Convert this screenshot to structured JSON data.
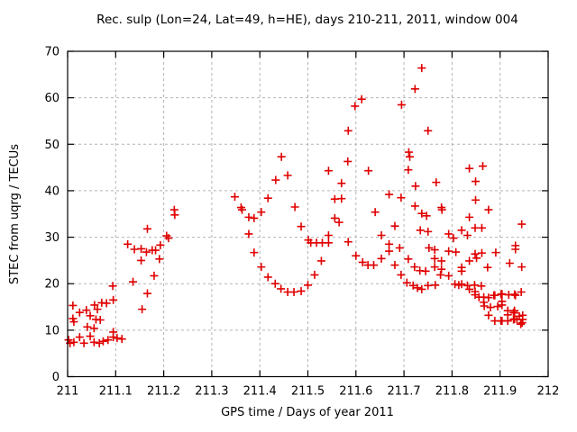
{
  "chart": {
    "title": "Rec. sulp (Lon=24, Lat=49, h=HE), days 210-211, 2011, window 004",
    "xlabel": "GPS time / Days of year 2011",
    "ylabel": "STEC from uqrg / TECUs"
  },
  "chart_data": {
    "type": "scatter",
    "title": "Rec. sulp (Lon=24, Lat=49, h=HE), days 210-211, 2011, window 004",
    "xlabel": "GPS time / Days of year 2011",
    "ylabel": "STEC from uqrg / TECUs",
    "xlim": [
      211,
      212
    ],
    "ylim": [
      0,
      70
    ],
    "grid": true,
    "legend_position": "none",
    "marker": "plus",
    "marker_color": "#e00000",
    "grid_color": "#b3b3b3",
    "border_color": "#000000",
    "xticks": {
      "values": [
        211,
        211.1,
        211.2,
        211.3,
        211.4,
        211.5,
        211.6,
        211.7,
        211.8,
        211.9,
        212
      ],
      "labels": [
        "211",
        "211.1",
        "211.2",
        "211.3",
        "211.4",
        "211.5",
        "211.6",
        "211.7",
        "211.8",
        "211.9",
        "212"
      ]
    },
    "yticks": {
      "values": [
        0,
        10,
        20,
        30,
        40,
        50,
        60,
        70
      ],
      "labels": [
        "0",
        "10",
        "20",
        "30",
        "40",
        "50",
        "60",
        "70"
      ]
    },
    "points": [
      [
        211.002,
        7.9
      ],
      [
        211.005,
        7.2
      ],
      [
        211.011,
        12.5
      ],
      [
        211.011,
        15.3
      ],
      [
        211.013,
        7.4
      ],
      [
        211.013,
        11.8
      ],
      [
        211.025,
        8.5
      ],
      [
        211.025,
        13.8
      ],
      [
        211.034,
        7.2
      ],
      [
        211.039,
        14.3
      ],
      [
        211.041,
        10.7
      ],
      [
        211.047,
        8.7
      ],
      [
        211.047,
        13.1
      ],
      [
        211.055,
        7.4
      ],
      [
        211.055,
        10.4
      ],
      [
        211.056,
        15.4
      ],
      [
        211.059,
        12.3
      ],
      [
        211.062,
        14.5
      ],
      [
        211.066,
        7.2
      ],
      [
        211.068,
        12.2
      ],
      [
        211.071,
        15.9
      ],
      [
        211.074,
        7.6
      ],
      [
        211.081,
        15.8
      ],
      [
        211.084,
        7.9
      ],
      [
        211.094,
        19.5
      ],
      [
        211.095,
        8.5
      ],
      [
        211.095,
        9.6
      ],
      [
        211.095,
        16.5
      ],
      [
        211.103,
        8.3
      ],
      [
        211.113,
        8.1
      ],
      [
        211.125,
        28.5
      ],
      [
        211.136,
        20.4
      ],
      [
        211.139,
        27.4
      ],
      [
        211.153,
        25.0
      ],
      [
        211.153,
        27.5
      ],
      [
        211.155,
        14.5
      ],
      [
        211.164,
        26.8
      ],
      [
        211.166,
        17.9
      ],
      [
        211.166,
        31.8
      ],
      [
        211.176,
        27.2
      ],
      [
        211.18,
        21.7
      ],
      [
        211.183,
        27.2
      ],
      [
        211.191,
        25.3
      ],
      [
        211.193,
        28.3
      ],
      [
        211.206,
        30.3
      ],
      [
        211.21,
        29.8
      ],
      [
        211.222,
        35.9
      ],
      [
        211.223,
        34.8
      ],
      [
        211.348,
        38.7
      ],
      [
        211.361,
        36.4
      ],
      [
        211.363,
        35.9
      ],
      [
        211.377,
        30.7
      ],
      [
        211.377,
        34.3
      ],
      [
        211.388,
        26.7
      ],
      [
        211.388,
        34.1
      ],
      [
        211.403,
        23.6
      ],
      [
        211.403,
        35.4
      ],
      [
        211.417,
        21.4
      ],
      [
        211.417,
        38.4
      ],
      [
        211.432,
        20.0
      ],
      [
        211.433,
        42.3
      ],
      [
        211.444,
        18.9
      ],
      [
        211.445,
        47.3
      ],
      [
        211.458,
        18.2
      ],
      [
        211.458,
        43.3
      ],
      [
        211.471,
        18.2
      ],
      [
        211.473,
        36.5
      ],
      [
        211.486,
        18.4
      ],
      [
        211.486,
        32.3
      ],
      [
        211.5,
        19.7
      ],
      [
        211.501,
        29.4
      ],
      [
        211.506,
        28.8
      ],
      [
        211.514,
        21.9
      ],
      [
        211.518,
        28.8
      ],
      [
        211.528,
        24.9
      ],
      [
        211.53,
        28.8
      ],
      [
        211.543,
        28.8
      ],
      [
        211.543,
        30.4
      ],
      [
        211.543,
        44.3
      ],
      [
        211.556,
        34.1
      ],
      [
        211.556,
        38.2
      ],
      [
        211.565,
        33.2
      ],
      [
        211.57,
        38.3
      ],
      [
        211.57,
        41.6
      ],
      [
        211.583,
        46.3
      ],
      [
        211.584,
        29.0
      ],
      [
        211.584,
        52.9
      ],
      [
        211.598,
        58.2
      ],
      [
        211.6,
        26.0
      ],
      [
        211.612,
        59.7
      ],
      [
        211.614,
        24.6
      ],
      [
        211.625,
        24.0
      ],
      [
        211.626,
        44.3
      ],
      [
        211.637,
        24.0
      ],
      [
        211.64,
        35.4
      ],
      [
        211.653,
        25.4
      ],
      [
        211.653,
        30.4
      ],
      [
        211.669,
        27.0
      ],
      [
        211.669,
        28.5
      ],
      [
        211.669,
        39.2
      ],
      [
        211.681,
        24.0
      ],
      [
        211.681,
        32.4
      ],
      [
        211.691,
        27.7
      ],
      [
        211.694,
        21.9
      ],
      [
        211.694,
        38.5
      ],
      [
        211.695,
        58.5
      ],
      [
        211.706,
        20.2
      ],
      [
        211.709,
        25.3
      ],
      [
        211.709,
        44.5
      ],
      [
        211.71,
        48.3
      ],
      [
        211.712,
        47.3
      ],
      [
        211.719,
        19.6
      ],
      [
        211.722,
        23.6
      ],
      [
        211.723,
        36.7
      ],
      [
        211.723,
        61.9
      ],
      [
        211.724,
        41.0
      ],
      [
        211.728,
        19.1
      ],
      [
        211.733,
        22.8
      ],
      [
        211.734,
        31.5
      ],
      [
        211.737,
        18.8
      ],
      [
        211.737,
        35.1
      ],
      [
        211.737,
        66.4
      ],
      [
        211.745,
        22.7
      ],
      [
        211.747,
        34.6
      ],
      [
        211.75,
        19.6
      ],
      [
        211.75,
        31.2
      ],
      [
        211.75,
        52.9
      ],
      [
        211.752,
        27.7
      ],
      [
        211.764,
        23.6
      ],
      [
        211.764,
        25.4
      ],
      [
        211.764,
        27.3
      ],
      [
        211.765,
        19.7
      ],
      [
        211.767,
        41.8
      ],
      [
        211.776,
        21.9
      ],
      [
        211.778,
        23.1
      ],
      [
        211.778,
        24.9
      ],
      [
        211.778,
        36.4
      ],
      [
        211.779,
        35.9
      ],
      [
        211.793,
        21.7
      ],
      [
        211.793,
        27.0
      ],
      [
        211.793,
        30.7
      ],
      [
        211.803,
        29.8
      ],
      [
        211.806,
        19.9
      ],
      [
        211.808,
        26.8
      ],
      [
        211.814,
        19.7
      ],
      [
        211.82,
        19.9
      ],
      [
        211.82,
        22.7
      ],
      [
        211.82,
        23.5
      ],
      [
        211.82,
        31.5
      ],
      [
        211.832,
        19.6
      ],
      [
        211.832,
        30.4
      ],
      [
        211.836,
        18.8
      ],
      [
        211.836,
        24.9
      ],
      [
        211.836,
        34.3
      ],
      [
        211.836,
        44.8
      ],
      [
        211.847,
        19.7
      ],
      [
        211.848,
        17.6
      ],
      [
        211.848,
        18.3
      ],
      [
        211.848,
        26.4
      ],
      [
        211.848,
        32.0
      ],
      [
        211.849,
        38.0
      ],
      [
        211.849,
        42.0
      ],
      [
        211.851,
        25.5
      ],
      [
        211.856,
        17.1
      ],
      [
        211.861,
        19.5
      ],
      [
        211.862,
        26.6
      ],
      [
        211.862,
        32.0
      ],
      [
        211.864,
        45.3
      ],
      [
        211.866,
        16.0
      ],
      [
        211.866,
        17.1
      ],
      [
        211.867,
        15.2
      ],
      [
        211.874,
        23.5
      ],
      [
        211.876,
        13.2
      ],
      [
        211.876,
        17.0
      ],
      [
        211.876,
        35.9
      ],
      [
        211.88,
        14.9
      ],
      [
        211.887,
        17.5
      ],
      [
        211.889,
        12.0
      ],
      [
        211.889,
        17.5
      ],
      [
        211.891,
        26.7
      ],
      [
        211.895,
        15.1
      ],
      [
        211.902,
        12.0
      ],
      [
        211.902,
        17.7
      ],
      [
        211.904,
        12.0
      ],
      [
        211.904,
        15.4
      ],
      [
        211.904,
        16.2
      ],
      [
        211.904,
        17.8
      ],
      [
        211.916,
        12.0
      ],
      [
        211.916,
        13.3
      ],
      [
        211.916,
        14.2
      ],
      [
        211.918,
        17.6
      ],
      [
        211.92,
        24.4
      ],
      [
        211.928,
        12.3
      ],
      [
        211.928,
        13.8
      ],
      [
        211.93,
        12.4
      ],
      [
        211.93,
        13.7
      ],
      [
        211.93,
        14.2
      ],
      [
        211.93,
        17.7
      ],
      [
        211.932,
        17.5
      ],
      [
        211.932,
        27.4
      ],
      [
        211.932,
        28.2
      ],
      [
        211.935,
        12.3
      ],
      [
        211.94,
        13.0
      ],
      [
        211.943,
        11.3
      ],
      [
        211.944,
        18.2
      ],
      [
        211.945,
        23.6
      ],
      [
        211.945,
        32.8
      ],
      [
        211.946,
        11.6
      ],
      [
        211.947,
        12.3
      ],
      [
        211.947,
        13.2
      ]
    ]
  }
}
